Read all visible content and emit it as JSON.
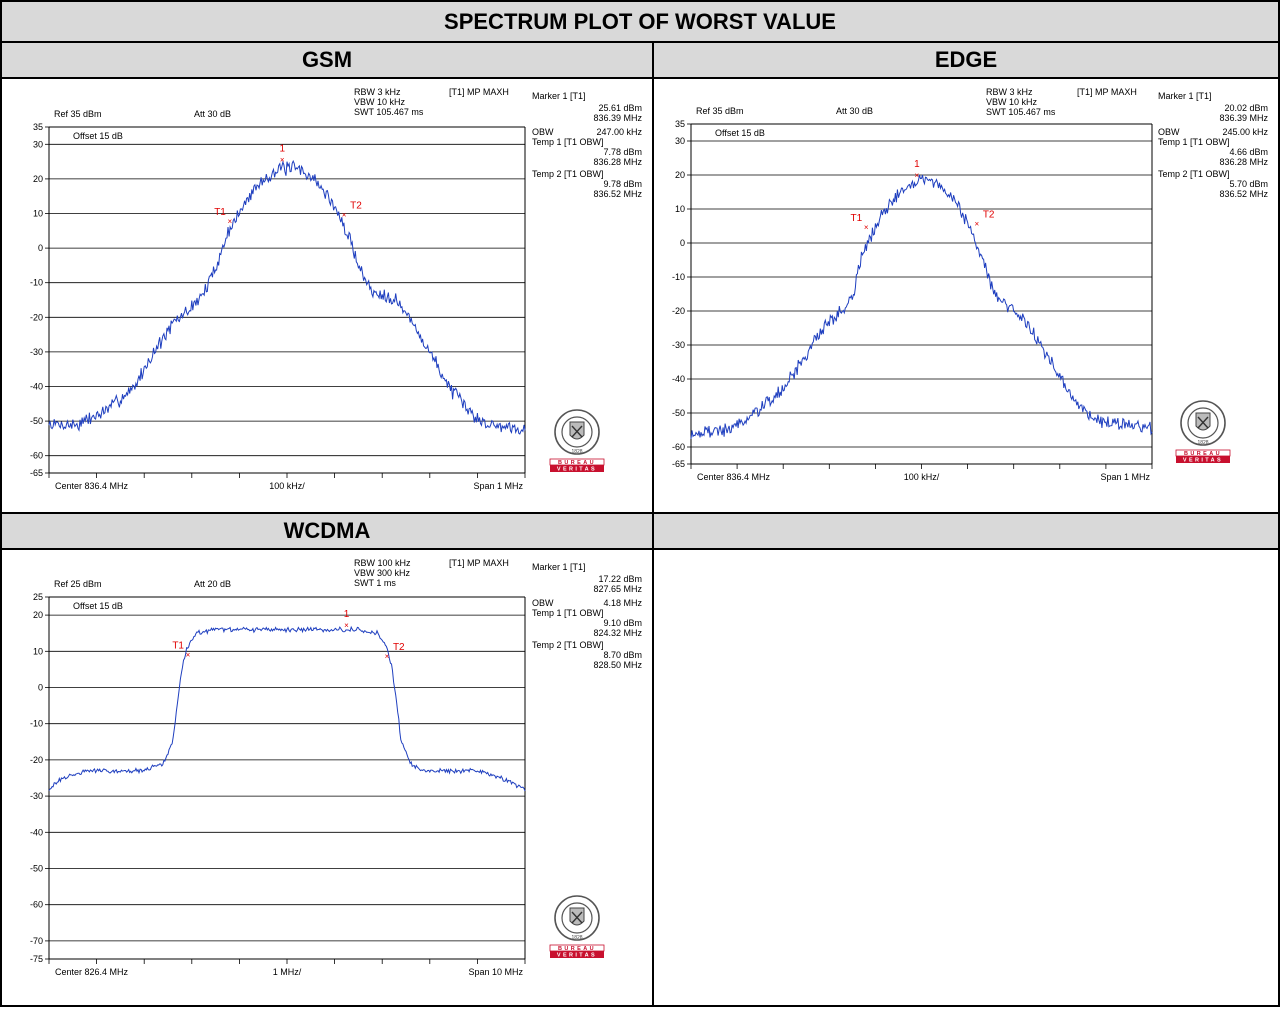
{
  "table": {
    "title": "SPECTRUM PLOT OF WORST VALUE",
    "headers": [
      "GSM",
      "EDGE",
      "WCDMA",
      ""
    ]
  },
  "chart_data": [
    {
      "type": "line",
      "name": "GSM",
      "ref_label": "Ref 35 dBm",
      "att_label": "Att 30 dB",
      "offset_label": "Offset 15 dB",
      "settings": [
        "RBW 3 kHz",
        "VBW 10 kHz",
        "SWT 105.467 ms"
      ],
      "trace_label": "[T1] MP MAXH",
      "marker_text": [
        "Marker 1 [T1]",
        "25.61 dBm",
        "836.39 MHz",
        "OBW",
        "247.00 kHz",
        "Temp 1 [T1 OBW]",
        "7.78 dBm",
        "836.28 MHz",
        "Temp 2 [T1 OBW]",
        "9.78 dBm",
        "836.52 MHz"
      ],
      "center_label": "Center 836.4 MHz",
      "div_label": "100 kHz/",
      "span_label": "Span 1 MHz",
      "ylim": [
        -65,
        35
      ],
      "yticks": [
        35,
        30,
        20,
        10,
        0,
        -10,
        -20,
        -30,
        -40,
        -50,
        -60,
        -65
      ],
      "xlim": [
        836.4,
        1.0
      ],
      "markers": [
        {
          "label": "1",
          "x": 836.39,
          "y": 25.61
        },
        {
          "label": "T1",
          "x": 836.28,
          "y": 7.78
        },
        {
          "label": "T2",
          "x": 836.52,
          "y": 9.78
        }
      ],
      "envelope": [
        [
          0,
          -51
        ],
        [
          0.06,
          -51
        ],
        [
          0.12,
          -47
        ],
        [
          0.18,
          -40
        ],
        [
          0.22,
          -30
        ],
        [
          0.26,
          -22
        ],
        [
          0.3,
          -17
        ],
        [
          0.33,
          -12
        ],
        [
          0.36,
          -2
        ],
        [
          0.38,
          6
        ],
        [
          0.4,
          10
        ],
        [
          0.43,
          17
        ],
        [
          0.46,
          21
        ],
        [
          0.49,
          23
        ],
        [
          0.52,
          23
        ],
        [
          0.55,
          21
        ],
        [
          0.58,
          16
        ],
        [
          0.6,
          12
        ],
        [
          0.63,
          3
        ],
        [
          0.66,
          -8
        ],
        [
          0.68,
          -13
        ],
        [
          0.7,
          -13
        ],
        [
          0.73,
          -15
        ],
        [
          0.76,
          -21
        ],
        [
          0.8,
          -30
        ],
        [
          0.84,
          -40
        ],
        [
          0.88,
          -47
        ],
        [
          0.92,
          -51
        ],
        [
          1,
          -52
        ]
      ],
      "noise": 1.6,
      "seed": 7
    },
    {
      "type": "line",
      "name": "EDGE",
      "ref_label": "Ref 35 dBm",
      "att_label": "Att 30 dB",
      "offset_label": "Offset 15 dB",
      "settings": [
        "RBW 3 kHz",
        "VBW 10 kHz",
        "SWT 105.467 ms"
      ],
      "trace_label": "[T1] MP MAXH",
      "marker_text": [
        "Marker 1 [T1]",
        "20.02 dBm",
        "836.39 MHz",
        "OBW",
        "245.00 kHz",
        "Temp 1 [T1 OBW]",
        "4.66 dBm",
        "836.28 MHz",
        "Temp 2 [T1 OBW]",
        "5.70 dBm",
        "836.52 MHz"
      ],
      "center_label": "Center 836.4 MHz",
      "div_label": "100 kHz/",
      "span_label": "Span 1 MHz",
      "ylim": [
        -65,
        35
      ],
      "yticks": [
        35,
        30,
        20,
        10,
        0,
        -10,
        -20,
        -30,
        -40,
        -50,
        -60,
        -65
      ],
      "xlim": [
        836.4,
        1.0
      ],
      "markers": [
        {
          "label": "1",
          "x": 836.39,
          "y": 20.02
        },
        {
          "label": "T1",
          "x": 836.28,
          "y": 4.66
        },
        {
          "label": "T2",
          "x": 836.52,
          "y": 5.7
        }
      ],
      "envelope": [
        [
          0,
          -56
        ],
        [
          0.08,
          -55
        ],
        [
          0.14,
          -50
        ],
        [
          0.2,
          -43
        ],
        [
          0.25,
          -33
        ],
        [
          0.29,
          -24
        ],
        [
          0.32,
          -21
        ],
        [
          0.35,
          -16
        ],
        [
          0.37,
          -4
        ],
        [
          0.39,
          2
        ],
        [
          0.42,
          9
        ],
        [
          0.45,
          15
        ],
        [
          0.48,
          18
        ],
        [
          0.51,
          19
        ],
        [
          0.54,
          17
        ],
        [
          0.57,
          13
        ],
        [
          0.6,
          6
        ],
        [
          0.63,
          -4
        ],
        [
          0.66,
          -15
        ],
        [
          0.69,
          -19
        ],
        [
          0.72,
          -22
        ],
        [
          0.76,
          -30
        ],
        [
          0.8,
          -40
        ],
        [
          0.84,
          -48
        ],
        [
          0.88,
          -52
        ],
        [
          0.93,
          -53
        ],
        [
          1,
          -55
        ]
      ],
      "noise": 1.6,
      "seed": 19
    },
    {
      "type": "line",
      "name": "WCDMA",
      "ref_label": "Ref 25 dBm",
      "att_label": "Att 20 dB",
      "offset_label": "Offset 15 dB",
      "settings": [
        "RBW 100 kHz",
        "VBW 300 kHz",
        "SWT 1 ms"
      ],
      "trace_label": "[T1] MP MAXH",
      "marker_text": [
        "Marker 1 [T1]",
        "17.22 dBm",
        "827.65 MHz",
        "OBW",
        "4.18 MHz",
        "Temp 1 [T1 OBW]",
        "9.10 dBm",
        "824.32 MHz",
        "Temp 2 [T1 OBW]",
        "8.70 dBm",
        "828.50 MHz"
      ],
      "center_label": "Center 826.4 MHz",
      "div_label": "1 MHz/",
      "span_label": "Span 10 MHz",
      "ylim": [
        -75,
        25
      ],
      "yticks": [
        25,
        20,
        10,
        0,
        -10,
        -20,
        -30,
        -40,
        -50,
        -60,
        -70,
        -75
      ],
      "xlim": [
        826.4,
        10.0
      ],
      "markers": [
        {
          "label": "1",
          "x": 827.65,
          "y": 17.22
        },
        {
          "label": "T1",
          "x": 824.32,
          "y": 9.1
        },
        {
          "label": "T2",
          "x": 828.5,
          "y": 8.7
        }
      ],
      "envelope": [
        [
          0,
          -28
        ],
        [
          0.03,
          -25
        ],
        [
          0.08,
          -23
        ],
        [
          0.2,
          -23
        ],
        [
          0.24,
          -21
        ],
        [
          0.26,
          -15
        ],
        [
          0.27,
          -4
        ],
        [
          0.28,
          6
        ],
        [
          0.29,
          11
        ],
        [
          0.31,
          15
        ],
        [
          0.35,
          16
        ],
        [
          0.5,
          16
        ],
        [
          0.65,
          16
        ],
        [
          0.69,
          15
        ],
        [
          0.71,
          11
        ],
        [
          0.72,
          6
        ],
        [
          0.73,
          -4
        ],
        [
          0.74,
          -15
        ],
        [
          0.76,
          -21
        ],
        [
          0.78,
          -23
        ],
        [
          0.9,
          -23
        ],
        [
          0.95,
          -25
        ],
        [
          1,
          -28
        ]
      ],
      "noise": 0.5,
      "seed": 31
    }
  ],
  "logo": {
    "name": "BUREAU VERITAS",
    "year": "1828"
  }
}
